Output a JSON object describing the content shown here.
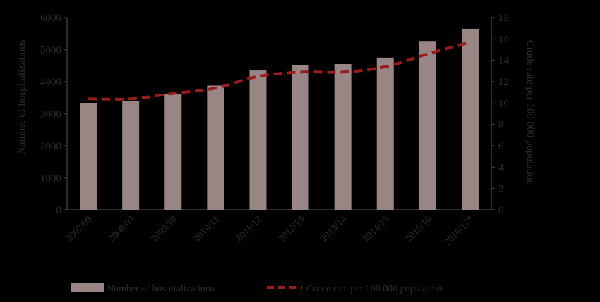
{
  "colors": {
    "background": "#000000",
    "bar": "#9a8585",
    "line": "#9b1b1b",
    "axis": "#3a3a3a",
    "text": "#2e2e2e"
  },
  "chart_data": {
    "type": "bar",
    "categories": [
      "2007/08",
      "2008/09",
      "2009/10",
      "2010/11",
      "2011/12",
      "2012/13",
      "2013/14",
      "2014/15",
      "2015/16",
      "2016/17*"
    ],
    "ylabel": "Number of hospitalizations",
    "ylabel_right": "Crude rate per 100 000 population",
    "ylim": [
      0,
      6000
    ],
    "yticks": [
      "0",
      "1000",
      "2000",
      "3000",
      "4000",
      "5000",
      "6000"
    ],
    "ylim_right": [
      0,
      18
    ],
    "yticks_right": [
      "0",
      "2",
      "4",
      "6",
      "8",
      "10",
      "12",
      "14",
      "16",
      "18"
    ],
    "legend_position": "bottom",
    "series": [
      {
        "name": "Number of hospitalizations",
        "type": "bar",
        "axis": "left",
        "values": [
          3330,
          3400,
          3620,
          3880,
          4350,
          4520,
          4550,
          4750,
          5270,
          5650
        ]
      },
      {
        "name": "Crude rate per 100 000 population",
        "type": "line",
        "style": "dashed",
        "axis": "right",
        "values": [
          10.4,
          10.4,
          10.9,
          11.4,
          12.5,
          12.9,
          12.9,
          13.4,
          14.6,
          15.7
        ]
      }
    ]
  }
}
